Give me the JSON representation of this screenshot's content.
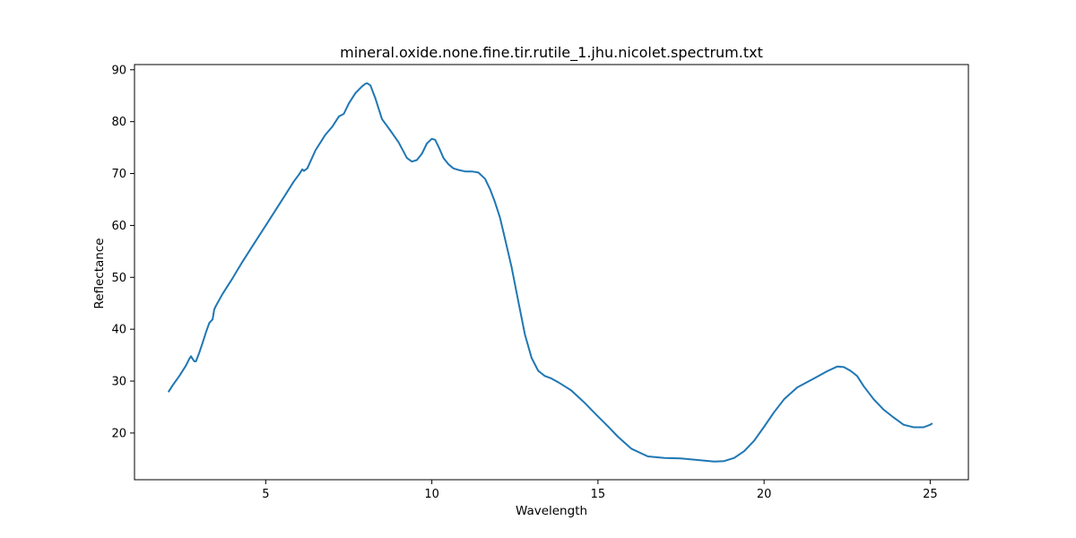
{
  "chart_data": {
    "type": "line",
    "title": "mineral.oxide.none.fine.tir.rutile_1.jhu.nicolet.spectrum.txt",
    "xlabel": "Wavelength",
    "ylabel": "Reflectance",
    "xlim": [
      1.05,
      26.15
    ],
    "ylim": [
      11.0,
      91.0
    ],
    "x_ticks": [
      5,
      10,
      15,
      20,
      25
    ],
    "y_ticks": [
      20,
      30,
      40,
      50,
      60,
      70,
      80,
      90
    ],
    "grid": false,
    "legend": "none",
    "line_color": "#1f77b4",
    "series": [
      {
        "x": [
          2.08,
          2.2,
          2.4,
          2.6,
          2.7,
          2.75,
          2.8,
          2.85,
          2.9,
          3.0,
          3.1,
          3.2,
          3.3,
          3.4,
          3.45,
          3.5,
          3.7,
          4.0,
          4.3,
          4.6,
          5.0,
          5.3,
          5.6,
          5.85,
          6.0,
          6.1,
          6.15,
          6.25,
          6.5,
          6.8,
          7.0,
          7.1,
          7.2,
          7.35,
          7.5,
          7.7,
          7.9,
          8.0,
          8.05,
          8.15,
          8.3,
          8.5,
          8.75,
          9.0,
          9.25,
          9.4,
          9.55,
          9.7,
          9.85,
          10.0,
          10.1,
          10.2,
          10.35,
          10.5,
          10.65,
          10.8,
          11.0,
          11.2,
          11.4,
          11.6,
          11.75,
          11.9,
          12.05,
          12.2,
          12.4,
          12.6,
          12.8,
          13.0,
          13.2,
          13.4,
          13.6,
          13.8,
          14.0,
          14.2,
          14.4,
          14.6,
          14.8,
          15.0,
          15.3,
          15.6,
          16.0,
          16.5,
          17.0,
          17.5,
          18.0,
          18.5,
          18.8,
          19.1,
          19.4,
          19.7,
          20.0,
          20.3,
          20.6,
          21.0,
          21.5,
          21.9,
          22.2,
          22.4,
          22.6,
          22.8,
          23.0,
          23.3,
          23.6,
          23.9,
          24.2,
          24.5,
          24.8,
          25.0,
          25.05
        ],
        "y": [
          28.0,
          29.2,
          31.0,
          33.0,
          34.3,
          34.8,
          34.3,
          33.8,
          33.8,
          35.5,
          37.4,
          39.4,
          41.2,
          41.9,
          43.8,
          44.5,
          46.8,
          49.8,
          53.0,
          56.0,
          60.0,
          63.0,
          66.0,
          68.5,
          69.8,
          70.8,
          70.5,
          71.0,
          74.5,
          77.5,
          79.0,
          80.0,
          81.0,
          81.5,
          83.5,
          85.5,
          86.8,
          87.3,
          87.4,
          87.0,
          84.5,
          80.5,
          78.3,
          76.0,
          73.0,
          72.3,
          72.6,
          73.8,
          75.8,
          76.7,
          76.5,
          75.2,
          73.0,
          71.8,
          71.0,
          70.7,
          70.4,
          70.4,
          70.2,
          69.0,
          67.0,
          64.5,
          61.5,
          57.5,
          52.0,
          45.5,
          39.0,
          34.5,
          32.0,
          31.0,
          30.5,
          29.8,
          29.0,
          28.2,
          27.0,
          25.8,
          24.5,
          23.2,
          21.3,
          19.3,
          17.0,
          15.5,
          15.2,
          15.1,
          14.8,
          14.5,
          14.6,
          15.2,
          16.5,
          18.5,
          21.2,
          24.0,
          26.5,
          28.8,
          30.5,
          31.9,
          32.8,
          32.7,
          32.0,
          31.0,
          29.0,
          26.5,
          24.5,
          23.0,
          21.6,
          21.1,
          21.1,
          21.6,
          21.8
        ]
      }
    ]
  }
}
